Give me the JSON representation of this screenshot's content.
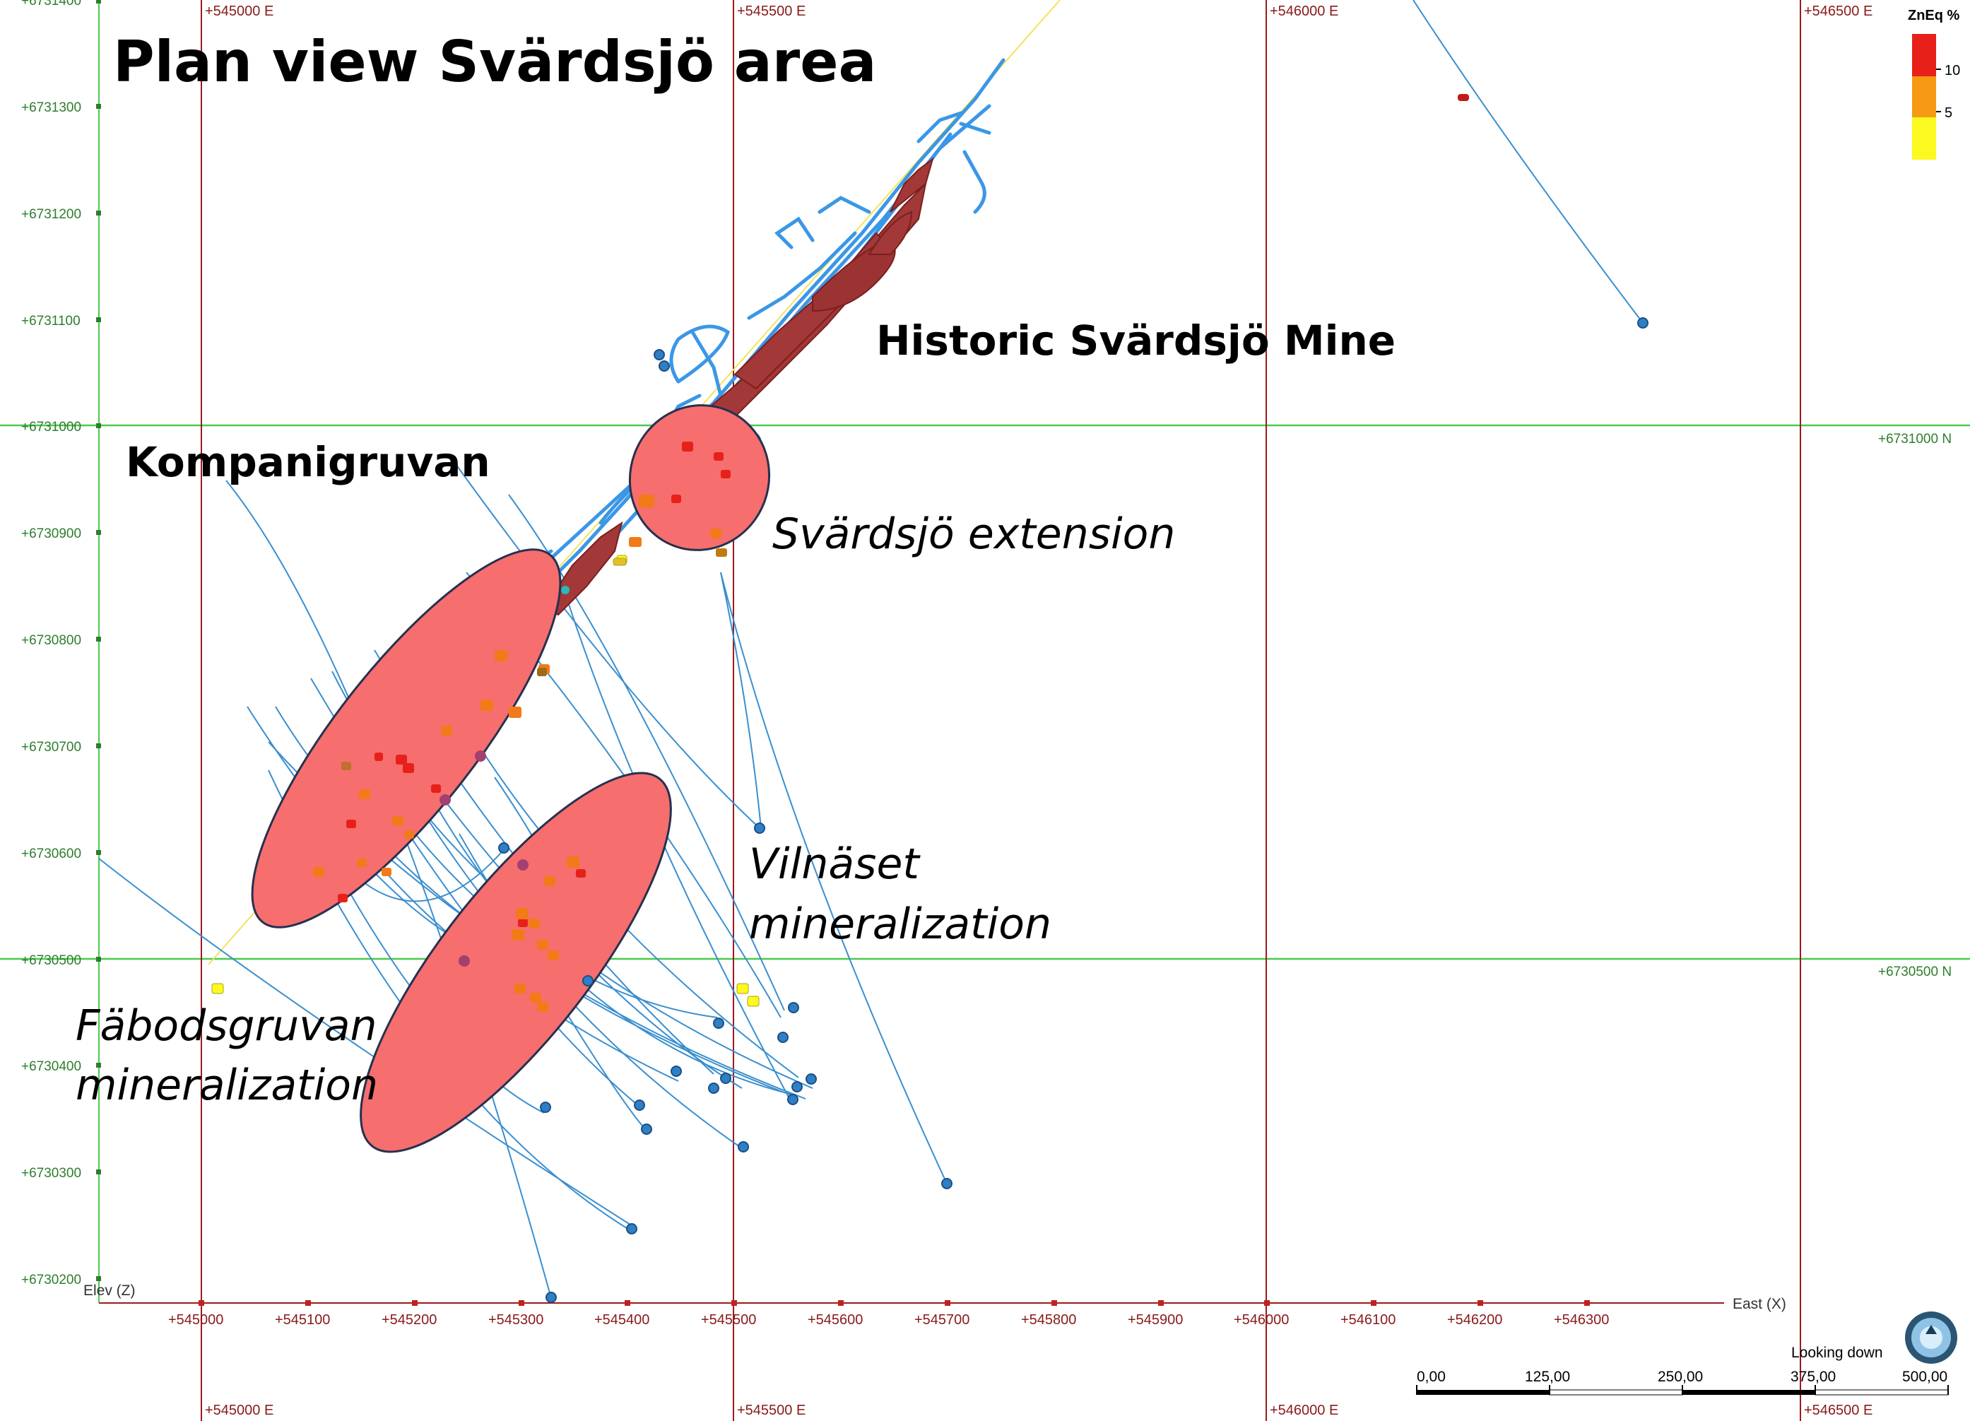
{
  "title": "Plan view Svärdsjö area",
  "labels": {
    "historic_mine": "Historic Svärdsjö Mine",
    "kompanigruvan": "Kompanigruvan",
    "extension": "Svärdsjö extension",
    "vilnaset_1": "Vilnäset",
    "vilnaset_2": "mineralization",
    "fabods_1": "Fäbodsgruvan",
    "fabods_2": "mineralization"
  },
  "northing_ticks": [
    "+6731400",
    "+6731300",
    "+6731200",
    "+6731100",
    "+6731000",
    "+6730900",
    "+6730800",
    "+6730700",
    "+6730600",
    "+6730500",
    "+6730400",
    "+6730300",
    "+6730200"
  ],
  "northing_grid_labels": [
    "+6731000 N",
    "+6730500 N"
  ],
  "easting_grid_labels": [
    "+545000 E",
    "+545500 E",
    "+546000 E",
    "+546500 E"
  ],
  "easting_ticks": [
    "+545000",
    "+545100",
    "+545200",
    "+545300",
    "+545400",
    "+545500",
    "+545600",
    "+545700",
    "+545800",
    "+545900",
    "+546000",
    "+546100",
    "+546200",
    "+546300"
  ],
  "axis": {
    "z_label": "Elev (Z)",
    "x_label": "East (X)"
  },
  "legend": {
    "title": "ZnEq %",
    "ticks": [
      "10",
      "5"
    ],
    "colors": [
      "#e8201a",
      "#f59a12",
      "#fbf91f"
    ]
  },
  "view": {
    "direction_label": "Looking down"
  },
  "scale_bar": {
    "ticks": [
      "0,00",
      "125,00",
      "250,00",
      "375,00",
      "500,00"
    ]
  },
  "colors": {
    "grid_north": "#4cc94c",
    "grid_east": "#9b1b1b",
    "drillhole": "#3a8fd0",
    "workings": "#3b97e6",
    "orebody": "#a33838",
    "zone_fill": "#f66e6e",
    "zone_stroke": "#27304f"
  }
}
